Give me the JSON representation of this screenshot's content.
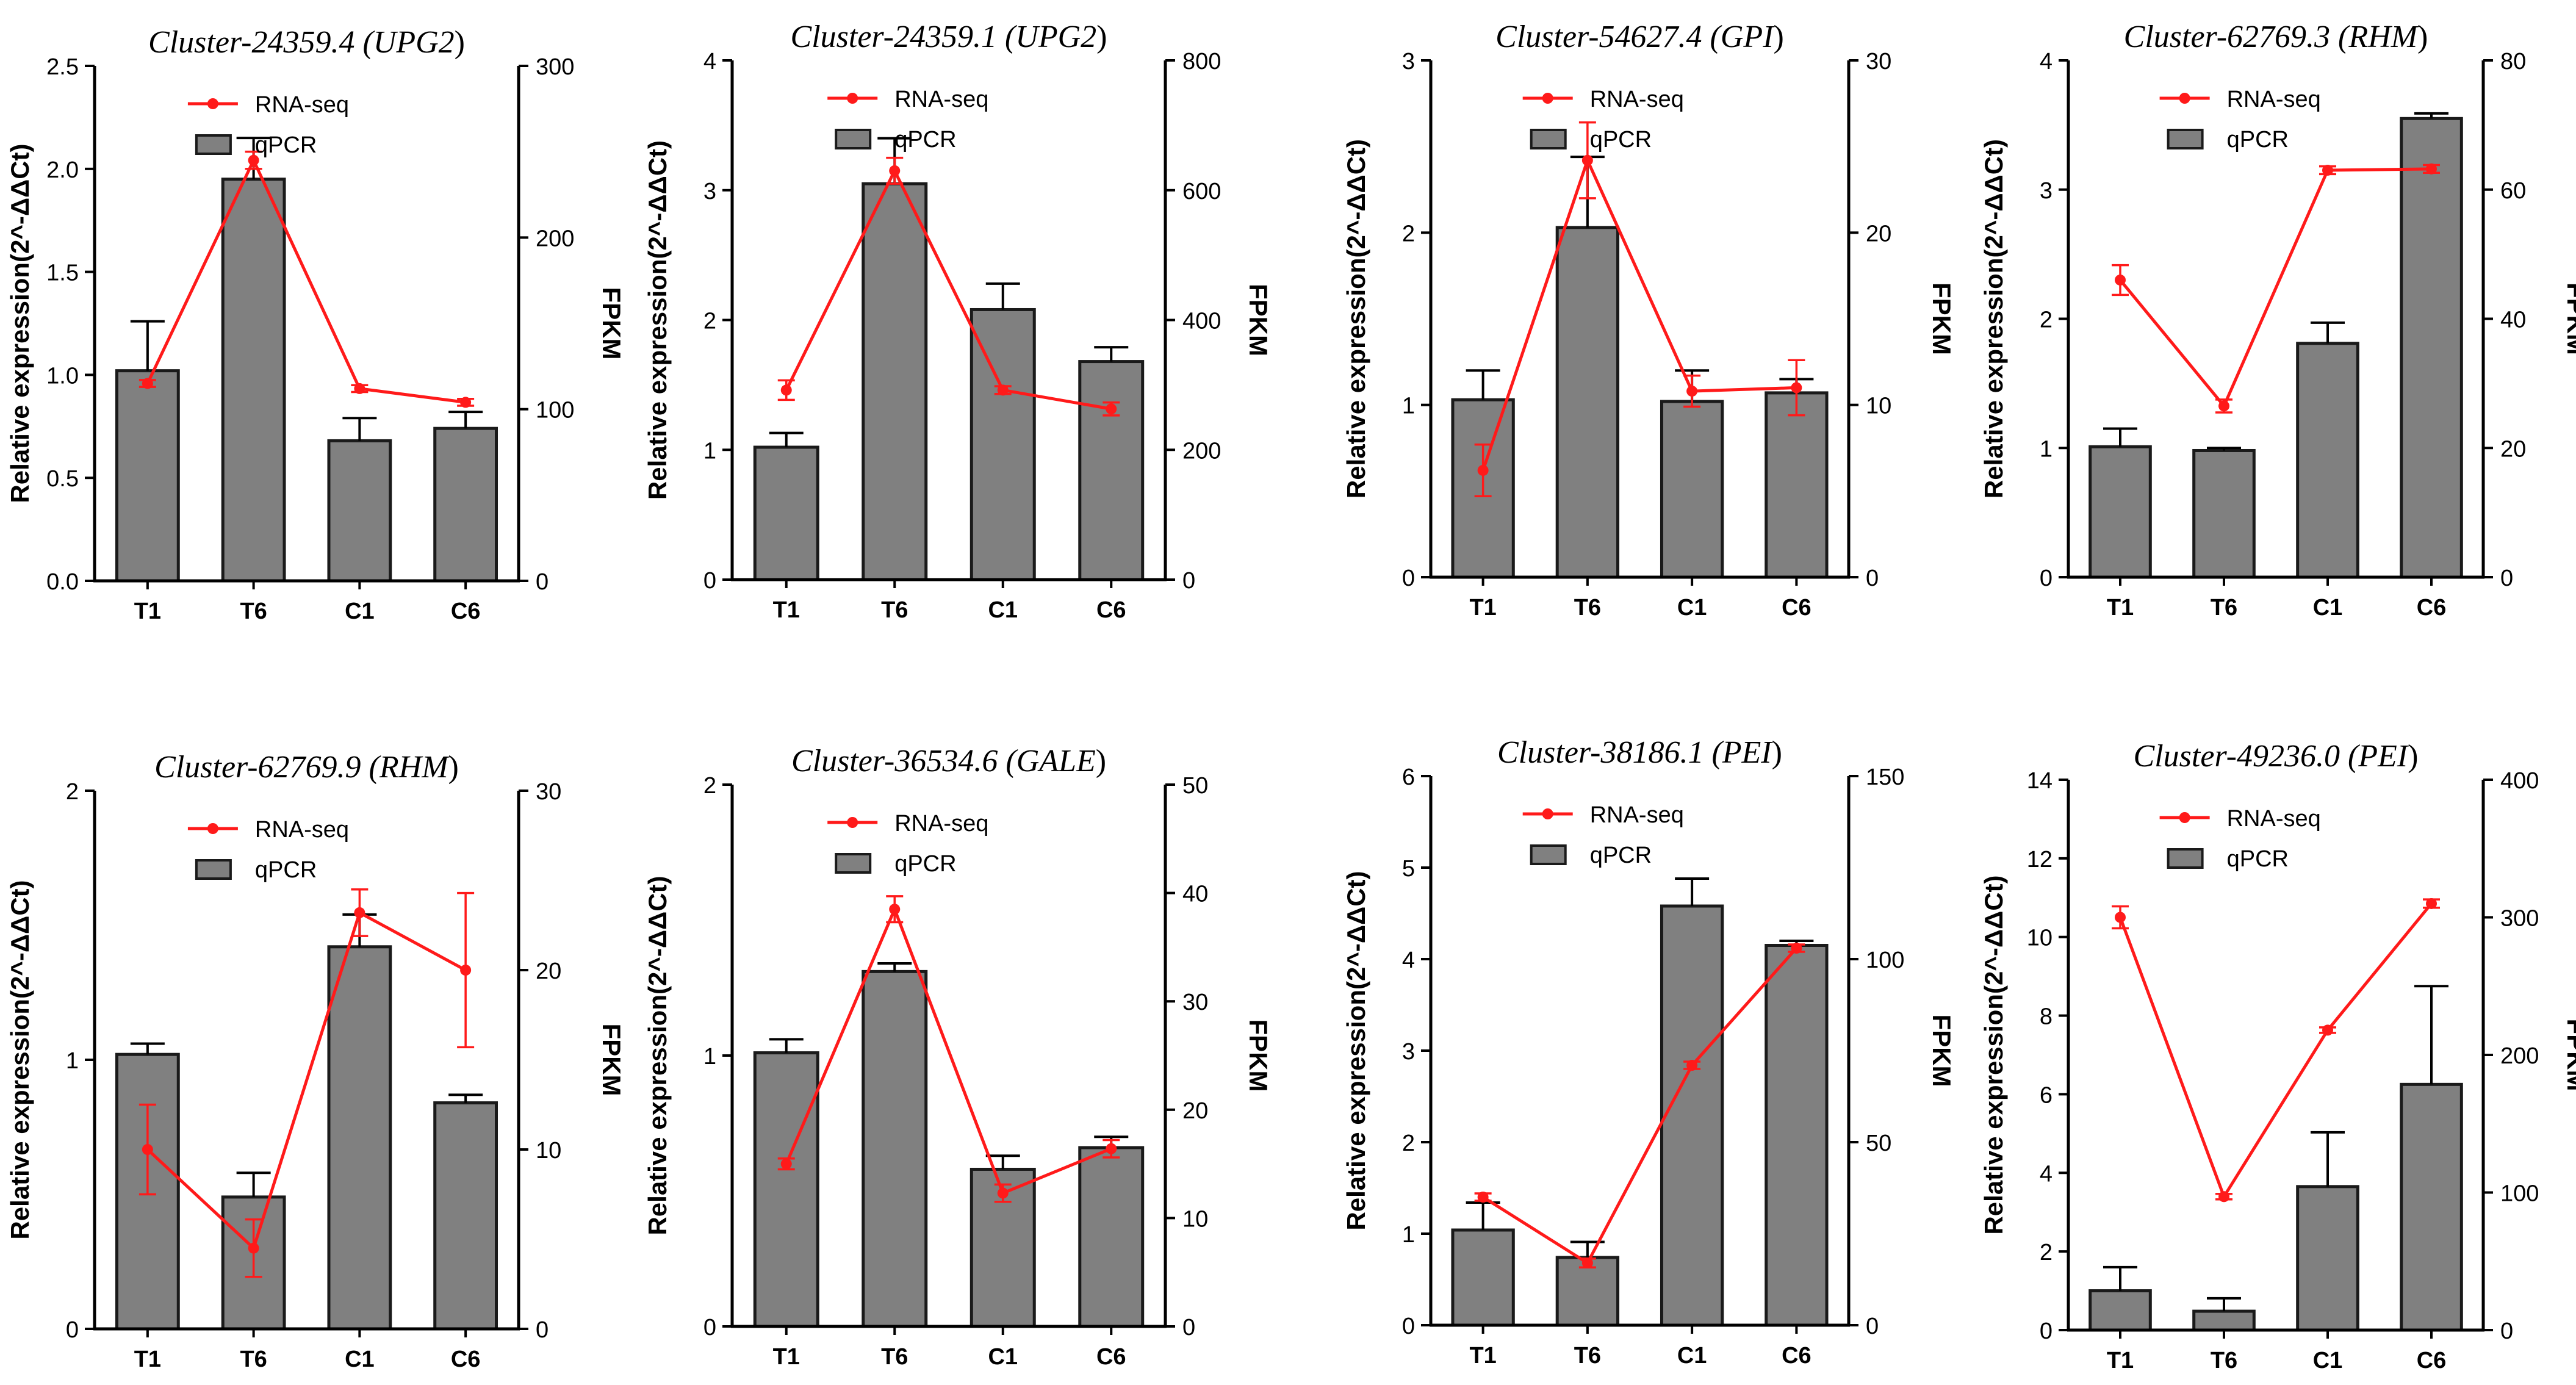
{
  "colors": {
    "bar": "#808080",
    "bar_edge": "#1a1a1a",
    "line": "#ff1a1a",
    "axis": "#000000"
  },
  "chart_data": [
    {
      "type": "bar",
      "title_main": "Cluster-24359.4 (",
      "title_gene": "UPG2",
      "title_close": ")",
      "categories": [
        "T1",
        "T6",
        "C1",
        "C6"
      ],
      "ylabel": "Relative expression(2^-ΔΔCt)",
      "y2label": "FPKM",
      "ylim": [
        0,
        2.5
      ],
      "yticks": [
        0.0,
        0.5,
        1.0,
        1.5,
        2.0,
        2.5
      ],
      "ytick_labels": [
        "0.0",
        "0.5",
        "1.0",
        "1.5",
        "2.0",
        "2.5"
      ],
      "y2lim": [
        0,
        300
      ],
      "y2ticks": [
        0,
        100,
        200,
        300
      ],
      "y2tick_labels": [
        "0",
        "100",
        "200",
        "300"
      ],
      "legend": {
        "line": "RNA-seq",
        "bar": "qPCR"
      },
      "series": [
        {
          "name": "qPCR",
          "axis": "left",
          "values": [
            1.02,
            1.95,
            0.68,
            0.74
          ],
          "errors": [
            0.24,
            0.2,
            0.11,
            0.08
          ]
        },
        {
          "name": "RNA-seq",
          "axis": "right",
          "values": [
            115,
            245,
            112,
            104
          ],
          "errors": [
            2,
            5,
            2,
            2
          ]
        }
      ]
    },
    {
      "type": "bar",
      "title_main": "Cluster-24359.1 (",
      "title_gene": "UPG2",
      "title_close": ")",
      "categories": [
        "T1",
        "T6",
        "C1",
        "C6"
      ],
      "ylabel": "Relative expression(2^-ΔΔCt)",
      "y2label": "FPKM",
      "ylim": [
        0,
        4
      ],
      "yticks": [
        0,
        1,
        2,
        3,
        4
      ],
      "ytick_labels": [
        "0",
        "1",
        "2",
        "3",
        "4"
      ],
      "y2lim": [
        0,
        800
      ],
      "y2ticks": [
        0,
        200,
        400,
        600,
        800
      ],
      "y2tick_labels": [
        "0",
        "200",
        "400",
        "600",
        "800"
      ],
      "legend": {
        "line": "RNA-seq",
        "bar": "qPCR"
      },
      "series": [
        {
          "name": "qPCR",
          "axis": "left",
          "values": [
            1.02,
            3.05,
            2.08,
            1.68
          ],
          "errors": [
            0.11,
            0.35,
            0.2,
            0.11
          ]
        },
        {
          "name": "RNA-seq",
          "axis": "right",
          "values": [
            292,
            630,
            292,
            263
          ],
          "errors": [
            15,
            20,
            6,
            10
          ]
        }
      ]
    },
    {
      "type": "bar",
      "title_main": "Cluster-54627.4 (",
      "title_gene": "GPI",
      "title_close": ")",
      "categories": [
        "T1",
        "T6",
        "C1",
        "C6"
      ],
      "ylabel": "Relative expression(2^-ΔΔCt)",
      "y2label": "FPKM",
      "ylim": [
        0,
        3
      ],
      "yticks": [
        0,
        1,
        2,
        3
      ],
      "ytick_labels": [
        "0",
        "1",
        "2",
        "3"
      ],
      "y2lim": [
        0,
        30
      ],
      "y2ticks": [
        0,
        10,
        20,
        30
      ],
      "y2tick_labels": [
        "0",
        "10",
        "20",
        "30"
      ],
      "legend": {
        "line": "RNA-seq",
        "bar": "qPCR"
      },
      "series": [
        {
          "name": "qPCR",
          "axis": "left",
          "values": [
            1.03,
            2.03,
            1.02,
            1.07
          ],
          "errors": [
            0.17,
            0.41,
            0.18,
            0.08
          ]
        },
        {
          "name": "RNA-seq",
          "axis": "right",
          "values": [
            6.2,
            24.2,
            10.8,
            11.0
          ],
          "errors": [
            1.5,
            2.2,
            0.9,
            1.6
          ]
        }
      ]
    },
    {
      "type": "bar",
      "title_main": "Cluster-62769.3 (",
      "title_gene": "RHM",
      "title_close": ")",
      "categories": [
        "T1",
        "T6",
        "C1",
        "C6"
      ],
      "ylabel": "Relative expression(2^-ΔΔCt)",
      "y2label": "FPKM",
      "ylim": [
        0,
        4
      ],
      "yticks": [
        0,
        1,
        2,
        3,
        4
      ],
      "ytick_labels": [
        "0",
        "1",
        "2",
        "3",
        "4"
      ],
      "y2lim": [
        0,
        80
      ],
      "y2ticks": [
        0,
        20,
        40,
        60,
        80
      ],
      "y2tick_labels": [
        "0",
        "20",
        "40",
        "60",
        "80"
      ],
      "legend": {
        "line": "RNA-seq",
        "bar": "qPCR"
      },
      "series": [
        {
          "name": "qPCR",
          "axis": "left",
          "values": [
            1.01,
            0.98,
            1.81,
            3.55
          ],
          "errors": [
            0.14,
            0.02,
            0.16,
            0.04
          ]
        },
        {
          "name": "RNA-seq",
          "axis": "right",
          "values": [
            46,
            26.5,
            63,
            63.2
          ],
          "errors": [
            2.3,
            1.0,
            0.6,
            0.6
          ]
        }
      ]
    },
    {
      "type": "bar",
      "title_main": "Cluster-62769.9 (",
      "title_gene": "RHM",
      "title_close": ")",
      "categories": [
        "T1",
        "T6",
        "C1",
        "C6"
      ],
      "ylabel": "Relative expression(2^-ΔΔCt)",
      "y2label": "FPKM",
      "ylim": [
        0,
        2
      ],
      "yticks": [
        0,
        1,
        2
      ],
      "ytick_labels": [
        "0",
        "1",
        "2"
      ],
      "y2lim": [
        0,
        30
      ],
      "y2ticks": [
        0,
        10,
        20,
        30
      ],
      "y2tick_labels": [
        "0",
        "10",
        "20",
        "30"
      ],
      "legend": {
        "line": "RNA-seq",
        "bar": "qPCR"
      },
      "series": [
        {
          "name": "qPCR",
          "axis": "left",
          "values": [
            1.02,
            0.49,
            1.42,
            0.84
          ],
          "errors": [
            0.04,
            0.09,
            0.12,
            0.03
          ]
        },
        {
          "name": "RNA-seq",
          "axis": "right",
          "values": [
            10,
            4.5,
            23.2,
            20
          ],
          "errors": [
            2.5,
            1.6,
            1.3,
            4.3
          ]
        }
      ]
    },
    {
      "type": "bar",
      "title_main": "Cluster-36534.6 (",
      "title_gene": "GALE",
      "title_close": ")",
      "categories": [
        "T1",
        "T6",
        "C1",
        "C6"
      ],
      "ylabel": "Relative expression(2^-ΔΔCt)",
      "y2label": "FPKM",
      "ylim": [
        0,
        2
      ],
      "yticks": [
        0,
        1,
        2
      ],
      "ytick_labels": [
        "0",
        "1",
        "2"
      ],
      "y2lim": [
        0,
        50
      ],
      "y2ticks": [
        0,
        10,
        20,
        30,
        40,
        50
      ],
      "y2tick_labels": [
        "0",
        "10",
        "20",
        "30",
        "40",
        "50"
      ],
      "legend": {
        "line": "RNA-seq",
        "bar": "qPCR"
      },
      "series": [
        {
          "name": "qPCR",
          "axis": "left",
          "values": [
            1.01,
            1.31,
            0.58,
            0.66
          ],
          "errors": [
            0.05,
            0.03,
            0.05,
            0.04
          ]
        },
        {
          "name": "RNA-seq",
          "axis": "right",
          "values": [
            15,
            38.5,
            12.3,
            16.4
          ],
          "errors": [
            0.5,
            1.2,
            0.8,
            0.8
          ]
        }
      ]
    },
    {
      "type": "bar",
      "title_main": "Cluster-38186.1 (",
      "title_gene": "PEI",
      "title_close": ")",
      "categories": [
        "T1",
        "T6",
        "C1",
        "C6"
      ],
      "ylabel": "Relative expression(2^-ΔΔCt)",
      "y2label": "FPKM",
      "ylim": [
        0,
        6
      ],
      "yticks": [
        0,
        1,
        2,
        3,
        4,
        5,
        6
      ],
      "ytick_labels": [
        "0",
        "1",
        "2",
        "3",
        "4",
        "5",
        "6"
      ],
      "y2lim": [
        0,
        150
      ],
      "y2ticks": [
        0,
        50,
        100,
        150
      ],
      "y2tick_labels": [
        "0",
        "50",
        "100",
        "150"
      ],
      "legend": {
        "line": "RNA-seq",
        "bar": "qPCR"
      },
      "series": [
        {
          "name": "qPCR",
          "axis": "left",
          "values": [
            1.04,
            0.74,
            4.58,
            4.15
          ],
          "errors": [
            0.3,
            0.17,
            0.3,
            0.05
          ]
        },
        {
          "name": "RNA-seq",
          "axis": "right",
          "values": [
            35,
            17,
            71,
            103
          ],
          "errors": [
            1,
            1.2,
            1,
            1
          ]
        }
      ]
    },
    {
      "type": "bar",
      "title_main": "Cluster-49236.0 (",
      "title_gene": "PEI",
      "title_close": ")",
      "categories": [
        "T1",
        "T6",
        "C1",
        "C6"
      ],
      "ylabel": "Relative expression(2^-ΔΔCt)",
      "y2label": "FPKM",
      "ylim": [
        0,
        14
      ],
      "yticks": [
        0,
        2,
        4,
        6,
        8,
        10,
        12,
        14
      ],
      "ytick_labels": [
        "0",
        "2",
        "4",
        "6",
        "8",
        "10",
        "12",
        "14"
      ],
      "y2lim": [
        0,
        400
      ],
      "y2ticks": [
        0,
        100,
        200,
        300,
        400
      ],
      "y2tick_labels": [
        "0",
        "100",
        "200",
        "300",
        "400"
      ],
      "legend": {
        "line": "RNA-seq",
        "bar": "qPCR"
      },
      "series": [
        {
          "name": "qPCR",
          "axis": "left",
          "values": [
            1.0,
            0.48,
            3.65,
            6.25
          ],
          "errors": [
            0.6,
            0.33,
            1.38,
            2.5
          ]
        },
        {
          "name": "RNA-seq",
          "axis": "right",
          "values": [
            300,
            97,
            218,
            310
          ],
          "errors": [
            8,
            2,
            2,
            3
          ]
        }
      ]
    }
  ]
}
